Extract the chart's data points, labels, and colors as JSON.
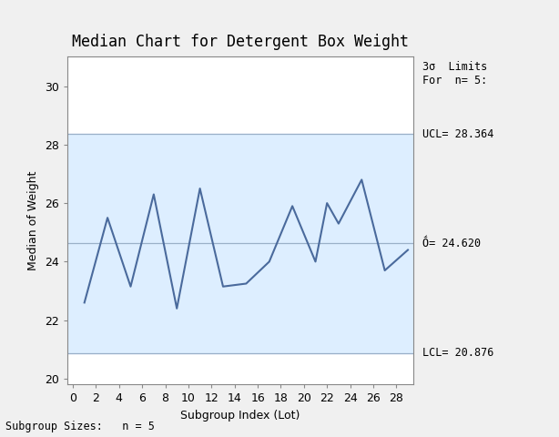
{
  "title": "Median Chart for Detergent Box Weight",
  "xlabel": "Subgroup Index (Lot)",
  "ylabel": "Median of Weight",
  "footer": "Subgroup Sizes:   n = 5",
  "annotation_title": "3σ  Limits\nFor  n= 5:",
  "UCL": 28.364,
  "CL": 24.62,
  "LCL": 20.876,
  "UCL_label": "UCL= 28.364",
  "CL_label": "Ṍ= 24.620",
  "LCL_label": "LCL= 20.876",
  "x": [
    1,
    3,
    5,
    7,
    9,
    11,
    13,
    15,
    17,
    19,
    21,
    22,
    23,
    25,
    27,
    29
  ],
  "y": [
    22.6,
    25.5,
    23.15,
    26.3,
    22.4,
    26.5,
    23.15,
    23.25,
    24.0,
    25.9,
    24.0,
    26.0,
    25.3,
    26.8,
    23.7,
    24.4
  ],
  "ylim": [
    19.8,
    31.0
  ],
  "xlim": [
    -0.5,
    29.5
  ],
  "xticks": [
    0,
    2,
    4,
    6,
    8,
    10,
    12,
    14,
    16,
    18,
    20,
    22,
    24,
    26,
    28
  ],
  "yticks": [
    20,
    22,
    24,
    26,
    28,
    30
  ],
  "line_color": "#4a6a9c",
  "fill_color": "#ddeeff",
  "control_line_color": "#9ab0c8",
  "bg_color": "#f0f0f0",
  "plot_bg_color": "white",
  "title_fontsize": 12,
  "label_fontsize": 9,
  "tick_fontsize": 9,
  "annot_fontsize": 8.5
}
